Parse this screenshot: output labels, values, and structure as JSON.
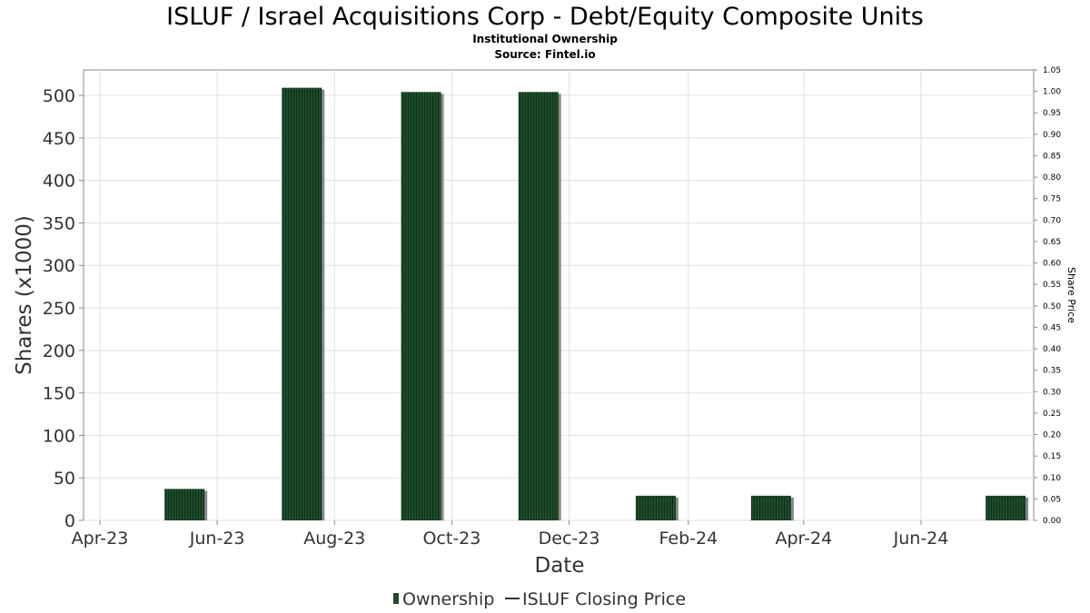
{
  "chart_data": {
    "type": "bar",
    "title": "ISLUF / Israel Acquisitions Corp - Debt/Equity Composite Units",
    "subtitles": [
      "Institutional Ownership",
      "Source: Fintel.io"
    ],
    "xlabel": "Date",
    "ylabel": "Shares (x1000)",
    "y2label": "Share Price",
    "x_ticks": [
      "Apr-23",
      "Jun-23",
      "Aug-23",
      "Oct-23",
      "Dec-23",
      "Feb-24",
      "Apr-24",
      "Jun-24"
    ],
    "ylim": [
      0,
      530
    ],
    "y_ticks": [
      0,
      50,
      100,
      150,
      200,
      250,
      300,
      350,
      400,
      450,
      500
    ],
    "y2lim": [
      0,
      1.05
    ],
    "y2_ticks": [
      "0.00",
      "0.05",
      "0.10",
      "0.15",
      "0.20",
      "0.25",
      "0.30",
      "0.35",
      "0.40",
      "0.45",
      "0.50",
      "0.55",
      "0.60",
      "0.65",
      "0.70",
      "0.75",
      "0.80",
      "0.85",
      "0.90",
      "0.95",
      "1.00",
      "1.05"
    ],
    "grid": true,
    "legend_position": "bottom",
    "series": [
      {
        "name": "Ownership",
        "color": "#1e4d2b",
        "points": [
          {
            "x": "2023-05-15",
            "y": 37
          },
          {
            "x": "2023-07-15",
            "y": 509
          },
          {
            "x": "2023-09-15",
            "y": 504
          },
          {
            "x": "2023-11-15",
            "y": 504
          },
          {
            "x": "2024-01-15",
            "y": 29
          },
          {
            "x": "2024-03-15",
            "y": 29
          },
          {
            "x": "2024-07-15",
            "y": 29
          }
        ]
      },
      {
        "name": "ISLUF Closing Price",
        "color": "#333333",
        "points": []
      }
    ]
  }
}
